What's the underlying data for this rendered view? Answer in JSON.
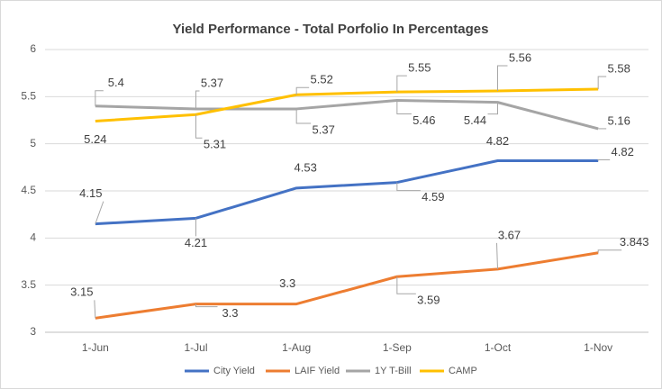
{
  "chart_data": {
    "type": "line",
    "title": "Yield Performance - Total Porfolio In Percentages",
    "categories": [
      "1-Jun",
      "1-Jul",
      "1-Aug",
      "1-Sep",
      "1-Oct",
      "1-Nov"
    ],
    "series": [
      {
        "name": "City Yield",
        "color": "#4472c4",
        "values": [
          4.15,
          4.21,
          4.53,
          4.59,
          4.82,
          4.82
        ]
      },
      {
        "name": "LAIF Yield",
        "color": "#ed7d31",
        "values": [
          3.15,
          3.3,
          3.3,
          3.59,
          3.67,
          3.843
        ]
      },
      {
        "name": "1Y T-Bill",
        "color": "#a5a5a5",
        "values": [
          5.4,
          5.37,
          5.37,
          5.46,
          5.44,
          5.16
        ]
      },
      {
        "name": "CAMP",
        "color": "#ffc000",
        "values": [
          5.24,
          5.31,
          5.52,
          5.55,
          5.56,
          5.58
        ]
      }
    ],
    "ylim": [
      3,
      6
    ],
    "yticks": [
      3,
      3.5,
      4,
      4.5,
      5,
      5.5,
      6
    ],
    "grid": true,
    "legend": "bottom"
  }
}
